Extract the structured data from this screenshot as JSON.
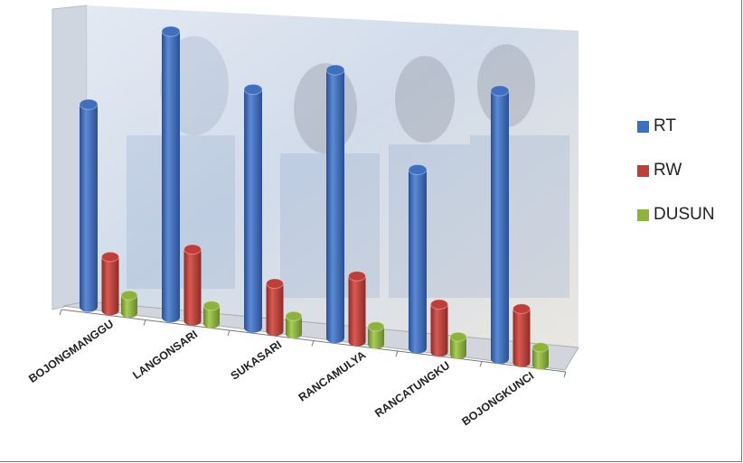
{
  "chart_data": {
    "type": "bar",
    "subtype": "3d-cylinder",
    "categories": [
      "BOJONGMANGGU",
      "LANGONSARI",
      "SUKASARI",
      "RANCAMULYA",
      "RANCATUNGKU",
      "BOJONGKUNCI"
    ],
    "series": [
      {
        "name": "RT",
        "color": "#3F6FBF",
        "values": [
          34,
          48,
          40,
          45,
          30,
          45
        ]
      },
      {
        "name": "RW",
        "color": "#BF3E38",
        "values": [
          9,
          12,
          8,
          11,
          8,
          9
        ]
      },
      {
        "name": "DUSUN",
        "color": "#8DB33B",
        "values": [
          3,
          3,
          3,
          3,
          3,
          3
        ]
      }
    ],
    "legend_position": "right",
    "grid": false,
    "title": "",
    "xlabel": "",
    "ylabel": ""
  }
}
